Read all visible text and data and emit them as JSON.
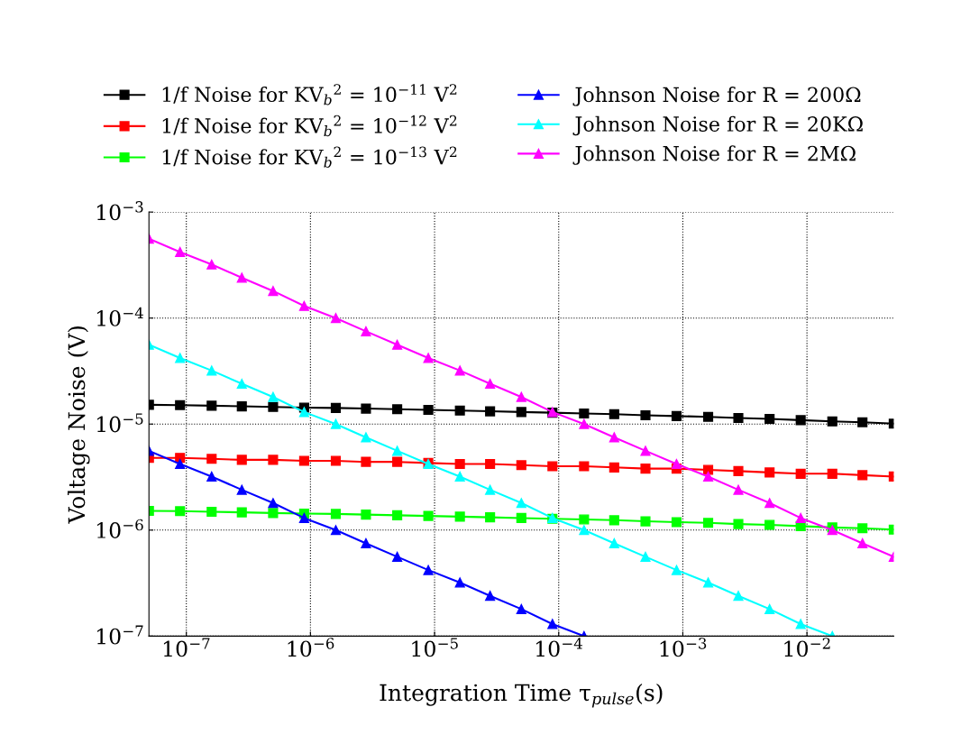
{
  "chart_data": {
    "type": "line",
    "log": "xy",
    "xlabel": "Integration Time τ$_{pulse}$(s)",
    "ylabel": "Voltage Noise (V)",
    "grid": true,
    "legend": "top",
    "line_style": "solid",
    "x": [
      5e-08,
      8.9e-08,
      1.6e-07,
      2.8e-07,
      5e-07,
      8.9e-07,
      1.6e-06,
      2.8e-06,
      5e-06,
      8.9e-06,
      1.6e-05,
      2.8e-05,
      5e-05,
      8.9e-05,
      0.00016,
      0.00028,
      0.0005,
      0.00089,
      0.0016,
      0.0028,
      0.005,
      0.0089,
      0.016,
      0.028,
      0.05
    ],
    "xlim": [
      5e-08,
      0.05
    ],
    "ylim": [
      1e-07,
      0.001
    ],
    "xticks": [
      {
        "value": 1e-07,
        "label": "10$^{−7}$"
      },
      {
        "value": 1e-06,
        "label": "10$^{−6}$"
      },
      {
        "value": 1e-05,
        "label": "10$^{−5}$"
      },
      {
        "value": 0.0001,
        "label": "10$^{−4}$"
      },
      {
        "value": 0.001,
        "label": "10$^{−3}$"
      },
      {
        "value": 0.01,
        "label": "10$^{−2}$"
      }
    ],
    "yticks": [
      {
        "value": 1e-07,
        "label": "10$^{−7}$"
      },
      {
        "value": 1e-06,
        "label": "10$^{−6}$"
      },
      {
        "value": 1e-05,
        "label": "10$^{−5}$"
      },
      {
        "value": 0.0001,
        "label": "10$^{−4}$"
      },
      {
        "value": 0.001,
        "label": "10$^{−3}$"
      }
    ],
    "series": [
      {
        "name": "1/f Noise for KV$_{b}$$^{2}$ = 10$^{−11}$ V$^{2}$",
        "color": "#000000",
        "marker": "square",
        "values": [
          1.52e-05,
          1.51e-05,
          1.49e-05,
          1.47e-05,
          1.45e-05,
          1.43e-05,
          1.42e-05,
          1.4e-05,
          1.38e-05,
          1.36e-05,
          1.34e-05,
          1.32e-05,
          1.3e-05,
          1.28e-05,
          1.26e-05,
          1.24e-05,
          1.21e-05,
          1.19e-05,
          1.17e-05,
          1.14e-05,
          1.12e-05,
          1.09e-05,
          1.06e-05,
          1.04e-05,
          1.01e-05
        ]
      },
      {
        "name": "1/f Noise for KV$_{b}$$^{2}$ = 10$^{−12}$ V$^{2}$",
        "color": "#ff0000",
        "marker": "square",
        "values": [
          4.8e-06,
          4.8e-06,
          4.7e-06,
          4.6e-06,
          4.6e-06,
          4.5e-06,
          4.5e-06,
          4.4e-06,
          4.4e-06,
          4.3e-06,
          4.2e-06,
          4.2e-06,
          4.1e-06,
          4e-06,
          4e-06,
          3.9e-06,
          3.8e-06,
          3.8e-06,
          3.7e-06,
          3.6e-06,
          3.5e-06,
          3.4e-06,
          3.4e-06,
          3.3e-06,
          3.2e-06
        ]
      },
      {
        "name": "1/f Noise for KV$_{b}$$^{2}$ = 10$^{−13}$ V$^{2}$",
        "color": "#00ff00",
        "marker": "square",
        "values": [
          1.52e-06,
          1.51e-06,
          1.49e-06,
          1.47e-06,
          1.45e-06,
          1.43e-06,
          1.42e-06,
          1.4e-06,
          1.38e-06,
          1.36e-06,
          1.34e-06,
          1.32e-06,
          1.3e-06,
          1.28e-06,
          1.26e-06,
          1.24e-06,
          1.21e-06,
          1.19e-06,
          1.17e-06,
          1.14e-06,
          1.12e-06,
          1.09e-06,
          1.06e-06,
          1.04e-06,
          1.01e-06
        ]
      },
      {
        "name": "Johnson Noise for R = 200Ω",
        "color": "#0000ff",
        "marker": "triangle",
        "values": [
          5.6e-06,
          4.2e-06,
          3.2e-06,
          2.4e-06,
          1.8e-06,
          1.3e-06,
          1e-06,
          7.5e-07,
          5.6e-07,
          4.2e-07,
          3.2e-07,
          2.4e-07,
          1.8e-07,
          1.3e-07,
          1e-07,
          null,
          null,
          null,
          null,
          null,
          null,
          null,
          null,
          null,
          null
        ]
      },
      {
        "name": "Johnson Noise for R = 20KΩ",
        "color": "#00ffff",
        "marker": "triangle",
        "values": [
          5.6e-05,
          4.2e-05,
          3.2e-05,
          2.4e-05,
          1.8e-05,
          1.3e-05,
          1e-05,
          7.5e-06,
          5.6e-06,
          4.2e-06,
          3.2e-06,
          2.4e-06,
          1.8e-06,
          1.3e-06,
          1e-06,
          7.5e-07,
          5.6e-07,
          4.2e-07,
          3.2e-07,
          2.4e-07,
          1.8e-07,
          1.3e-07,
          1e-07,
          null,
          null
        ]
      },
      {
        "name": "Johnson Noise for R = 2MΩ",
        "color": "#ff00ff",
        "marker": "triangle",
        "values": [
          0.00056,
          0.00042,
          0.00032,
          0.00024,
          0.00018,
          0.00013,
          0.0001,
          7.5e-05,
          5.6e-05,
          4.2e-05,
          3.2e-05,
          2.4e-05,
          1.8e-05,
          1.3e-05,
          1e-05,
          7.5e-06,
          5.6e-06,
          4.2e-06,
          3.2e-06,
          2.4e-06,
          1.8e-06,
          1.3e-06,
          1e-06,
          7.5e-07,
          5.6e-07
        ]
      }
    ]
  }
}
